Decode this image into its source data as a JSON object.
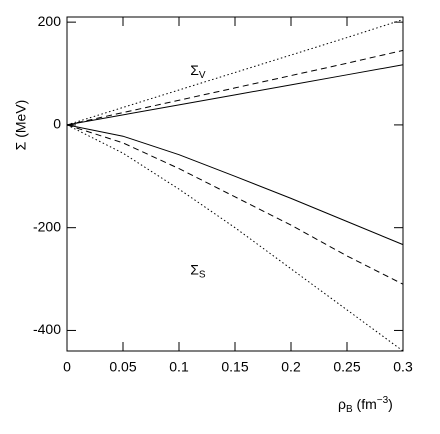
{
  "chart_data": {
    "type": "line",
    "x": [
      0,
      0.05,
      0.1,
      0.15,
      0.2,
      0.25,
      0.3
    ],
    "series": [
      {
        "color": "#000000",
        "style": "solid",
        "values": [
          0,
          19.5,
          39,
          58.5,
          78,
          97.5,
          117
        ]
      },
      {
        "color": "#000000",
        "style": "dashed",
        "values": [
          0,
          24,
          48,
          72,
          96,
          120,
          145
        ]
      },
      {
        "color": "#000000",
        "style": "dotted",
        "values": [
          0,
          34,
          68,
          102,
          136,
          170,
          205
        ]
      },
      {
        "color": "#000000",
        "style": "solid",
        "values": [
          0,
          -22,
          -58,
          -100,
          -143,
          -188,
          -233
        ]
      },
      {
        "color": "#000000",
        "style": "dashed",
        "values": [
          0,
          -35,
          -85,
          -140,
          -195,
          -255,
          -310
        ]
      },
      {
        "color": "#000000",
        "style": "dotted",
        "values": [
          0,
          -55,
          -125,
          -200,
          -280,
          -360,
          -440
        ]
      }
    ],
    "xlim": [
      0,
      0.3
    ],
    "ylim": [
      -440,
      210
    ],
    "xticks": [
      0,
      0.05,
      0.1,
      0.15,
      0.2,
      0.25,
      0.3
    ],
    "yticks": [
      -400,
      -200,
      0,
      200
    ],
    "y_label": "Σ (MeV)",
    "x_label": {
      "symbol": "ρ",
      "sub": "B",
      "unit": " (fm",
      "sup": "−3",
      "close": ")"
    },
    "annotations": [
      {
        "text": "Σ",
        "sub": "V",
        "x": 0.11,
        "y": 105
      },
      {
        "text": "Σ",
        "sub": "S",
        "x": 0.11,
        "y": -283
      }
    ]
  }
}
